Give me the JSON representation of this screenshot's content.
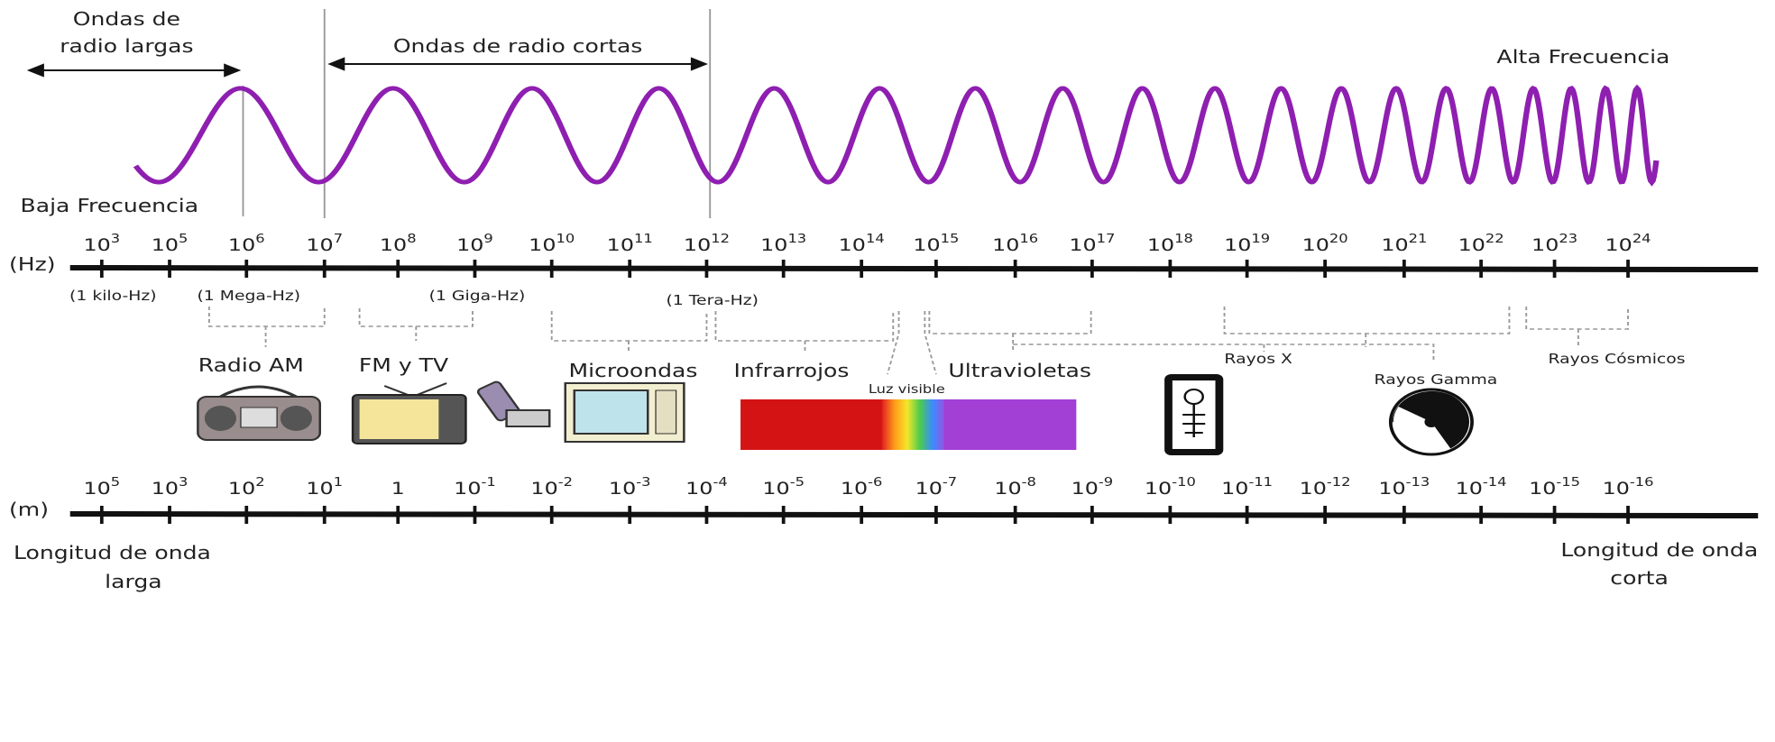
{
  "labels": {
    "long_radio": [
      "Ondas de",
      "radio largas"
    ],
    "short_radio": "Ondas de radio cortas",
    "high": "Alta Frecuencia",
    "low": "Baja Frecuencia"
  },
  "hz_axis": {
    "unit": "(Hz)",
    "ticks": [
      {
        "base": "10",
        "exp": "3"
      },
      {
        "base": "10",
        "exp": "5"
      },
      {
        "base": "10",
        "exp": "6"
      },
      {
        "base": "10",
        "exp": "7"
      },
      {
        "base": "10",
        "exp": "8"
      },
      {
        "base": "10",
        "exp": "9"
      },
      {
        "base": "10",
        "exp": "10"
      },
      {
        "base": "10",
        "exp": "11"
      },
      {
        "base": "10",
        "exp": "12"
      },
      {
        "base": "10",
        "exp": "13"
      },
      {
        "base": "10",
        "exp": "14"
      },
      {
        "base": "10",
        "exp": "15"
      },
      {
        "base": "10",
        "exp": "16"
      },
      {
        "base": "10",
        "exp": "17"
      },
      {
        "base": "10",
        "exp": "18"
      },
      {
        "base": "10",
        "exp": "19"
      },
      {
        "base": "10",
        "exp": "20"
      },
      {
        "base": "10",
        "exp": "21"
      },
      {
        "base": "10",
        "exp": "22"
      },
      {
        "base": "10",
        "exp": "23"
      },
      {
        "base": "10",
        "exp": "24"
      }
    ],
    "notes": [
      "(1 kilo-Hz)",
      "(1 Mega-Hz)",
      "(1 Giga-Hz)",
      "(1 Tera-Hz)"
    ]
  },
  "bands": [
    "Radio AM",
    "FM y TV",
    "Microondas",
    "Infrarrojos",
    "Luz visible",
    "Ultravioletas",
    "Rayos X",
    "Rayos Gamma",
    "Rayos Cósmicos"
  ],
  "m_axis": {
    "unit": "(m)",
    "ticks": [
      {
        "base": "10",
        "exp": "5"
      },
      {
        "base": "10",
        "exp": "3"
      },
      {
        "base": "10",
        "exp": "2"
      },
      {
        "base": "10",
        "exp": "1"
      },
      {
        "base": "1"
      },
      {
        "base": "10",
        "exp": "-1"
      },
      {
        "base": "10",
        "exp": "-2"
      },
      {
        "base": "10",
        "exp": "-3"
      },
      {
        "base": "10",
        "exp": "-4"
      },
      {
        "base": "10",
        "exp": "-5"
      },
      {
        "base": "10",
        "exp": "-6"
      },
      {
        "base": "10",
        "exp": "-7"
      },
      {
        "base": "10",
        "exp": "-8"
      },
      {
        "base": "10",
        "exp": "-9"
      },
      {
        "base": "10",
        "exp": "-10"
      },
      {
        "base": "10",
        "exp": "-11"
      },
      {
        "base": "10",
        "exp": "-12"
      },
      {
        "base": "10",
        "exp": "-13"
      },
      {
        "base": "10",
        "exp": "-14"
      },
      {
        "base": "10",
        "exp": "-15"
      },
      {
        "base": "10",
        "exp": "-16"
      }
    ]
  },
  "footer": {
    "long": [
      "Longitud de onda",
      "larga"
    ],
    "short": [
      "Longitud de onda",
      "corta"
    ]
  }
}
